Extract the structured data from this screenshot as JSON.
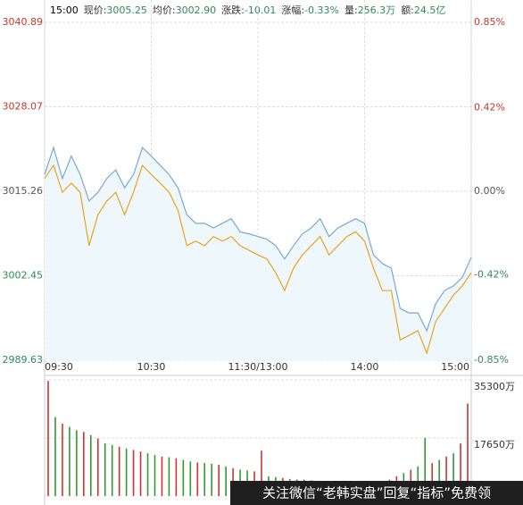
{
  "header": {
    "time": "15:00",
    "items": [
      {
        "label": "现价:",
        "value": "3005.25"
      },
      {
        "label": "均价:",
        "value": "3002.90"
      },
      {
        "label": "涨跌:",
        "value": "-10.01"
      },
      {
        "label": "涨幅:",
        "value": "-0.33%"
      },
      {
        "label": "量:",
        "value": "256.3万"
      },
      {
        "label": "额:",
        "value": "24.5亿"
      }
    ]
  },
  "chart_data": [
    {
      "type": "line",
      "xlim": [
        0,
        240
      ],
      "xticks": [
        {
          "value": 0,
          "label": "09:30"
        },
        {
          "value": 60,
          "label": "10:30"
        },
        {
          "value": 120,
          "label": "11:30/13:00"
        },
        {
          "value": 180,
          "label": "14:00"
        },
        {
          "value": 240,
          "label": "15:00"
        }
      ],
      "ylim": [
        2989.63,
        3040.89
      ],
      "yticks": [
        2989.63,
        3002.45,
        3015.26,
        3028.07,
        3040.89
      ],
      "y2lim": [
        -0.85,
        0.85
      ],
      "y2ticks": [
        {
          "value": -0.85,
          "label": "-0.85%"
        },
        {
          "value": -0.42,
          "label": "-0.42%"
        },
        {
          "value": 0,
          "label": "0.00%"
        },
        {
          "value": 0.42,
          "label": "0.42%"
        },
        {
          "value": 0.85,
          "label": "0.85%"
        }
      ],
      "grid": true,
      "x": [
        0,
        5,
        10,
        15,
        20,
        25,
        30,
        35,
        40,
        45,
        50,
        55,
        60,
        65,
        70,
        75,
        80,
        85,
        90,
        95,
        100,
        105,
        110,
        115,
        120,
        125,
        130,
        135,
        140,
        145,
        150,
        155,
        160,
        165,
        170,
        175,
        180,
        185,
        190,
        195,
        200,
        205,
        210,
        215,
        220,
        225,
        230,
        235,
        240
      ],
      "series": [
        {
          "color": "#7aa7d6",
          "area": "#eef7fb",
          "values": [
            3017.8,
            3021.9,
            3017.2,
            3020.6,
            3017.8,
            3013.8,
            3015.1,
            3017.2,
            3018.5,
            3015.8,
            3017.8,
            3021.9,
            3020.6,
            3019.2,
            3017.8,
            3015.8,
            3011.7,
            3010.4,
            3010.4,
            3009.7,
            3010.4,
            3011.1,
            3009.1,
            3008.8,
            3008.4,
            3008.0,
            3007.0,
            3005.0,
            3007.0,
            3008.8,
            3009.7,
            3011.1,
            3008.4,
            3009.7,
            3010.4,
            3011.1,
            3010.4,
            3005.6,
            3004.3,
            3003.6,
            2997.5,
            2996.8,
            2996.8,
            2994.1,
            2998.2,
            3000.2,
            3000.9,
            3002.2,
            3005.25
          ]
        },
        {
          "color": "#e8a41c",
          "values": [
            3017.2,
            3019.2,
            3015.1,
            3016.5,
            3015.1,
            3007.0,
            3011.7,
            3013.8,
            3015.1,
            3011.7,
            3015.1,
            3019.2,
            3017.8,
            3016.5,
            3015.1,
            3012.4,
            3007.0,
            3007.7,
            3007.0,
            3008.4,
            3007.7,
            3008.4,
            3007.0,
            3006.3,
            3005.6,
            3005.0,
            3002.9,
            3000.2,
            3003.6,
            3005.6,
            3007.0,
            3008.4,
            3005.6,
            3007.0,
            3008.4,
            3009.1,
            3007.7,
            3003.6,
            3000.2,
            3000.2,
            2992.7,
            2993.4,
            2994.1,
            2990.7,
            2995.5,
            2997.5,
            2999.5,
            3000.9,
            3002.9
          ]
        }
      ]
    },
    {
      "type": "bar",
      "ylim": [
        0,
        35300
      ],
      "yticks": [
        {
          "value": 17650,
          "label": "17650万"
        },
        {
          "value": 35300,
          "label": "35300万"
        }
      ],
      "values": [
        35000,
        24000,
        22000,
        21000,
        20000,
        19500,
        18500,
        17500,
        16000,
        15500,
        15000,
        14500,
        14000,
        13500,
        13000,
        12500,
        12000,
        11800,
        11500,
        11000,
        10500,
        10200,
        10000,
        9800,
        9500,
        9000,
        8500,
        8000,
        7800,
        7500,
        13800,
        6000,
        5800,
        5500,
        5200,
        5000,
        5000,
        4800,
        4600,
        4500,
        4500,
        4400,
        4300,
        4200,
        4200,
        4100,
        4000,
        4500,
        5000,
        6000,
        7000,
        8000,
        9000,
        17650,
        10000,
        11000,
        12000,
        13000,
        16000,
        28100
      ],
      "colors": [
        "#c33",
        "#393",
        "#c33",
        "#393",
        "#393",
        "#c33",
        "#393",
        "#c33",
        "#393",
        "#393",
        "#c33",
        "#393",
        "#c33",
        "#c33",
        "#393",
        "#393",
        "#c33",
        "#393",
        "#c33",
        "#393",
        "#393",
        "#c33",
        "#393",
        "#393",
        "#c33",
        "#393",
        "#c33",
        "#393",
        "#393",
        "#c33",
        "#c33",
        "#393",
        "#393",
        "#c33",
        "#393",
        "#c33",
        "#393",
        "#393",
        "#c33",
        "#393",
        "#c33",
        "#393",
        "#393",
        "#c33",
        "#393",
        "#c33",
        "#393",
        "#c33",
        "#393",
        "#c33",
        "#393",
        "#c33",
        "#393",
        "#393",
        "#c33",
        "#393",
        "#c33",
        "#393",
        "#c33",
        "#c33"
      ]
    }
  ],
  "watermark": "关注微信“老韩实盘”回复“指标”免费领"
}
